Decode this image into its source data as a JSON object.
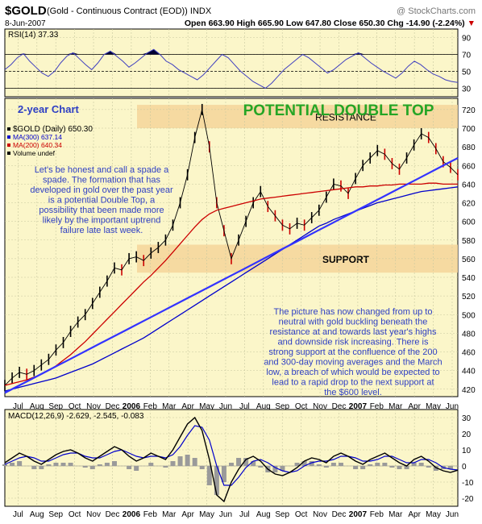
{
  "header": {
    "symbol": "$GOLD",
    "description": "(Gold - Continuous Contract (EOD)) INDX",
    "source": "@ StockCharts.com",
    "date": "8-Jun-2007",
    "quote": "Open 663.90  High 665.90  Low 647.80  Close 650.30  Chg -14.90 (-2.24%)",
    "quote_arrow": "▼"
  },
  "chart_data": [
    {
      "type": "line",
      "panel": "rsi",
      "legend": "RSI(14) 37.33",
      "ylim": [
        20,
        100
      ],
      "y_ticks": [
        30,
        50,
        70,
        90
      ],
      "reference_lines": [
        30,
        50,
        70
      ],
      "grid": true,
      "series": [
        {
          "name": "RSI(14)",
          "values": [
            52,
            58,
            66,
            71,
            62,
            55,
            48,
            44,
            50,
            60,
            68,
            72,
            65,
            58,
            52,
            60,
            70,
            74,
            68,
            62,
            55,
            60,
            66,
            72,
            76,
            70,
            62,
            58,
            52,
            48,
            44,
            40,
            46,
            54,
            62,
            70,
            66,
            58,
            50,
            44,
            38,
            34,
            30,
            36,
            44,
            52,
            58,
            64,
            70,
            66,
            60,
            54,
            48,
            52,
            58,
            64,
            68,
            72,
            66,
            60,
            55,
            50,
            46,
            42,
            48,
            56,
            62,
            58,
            52,
            47,
            44,
            40,
            38,
            37
          ]
        }
      ]
    },
    {
      "type": "line",
      "panel": "price",
      "title": "2-year Chart",
      "headline": "POTENTIAL DOUBLE TOP",
      "legend": [
        "$GOLD (Daily) 650.30",
        "MA(300) 637.14",
        "MA(200) 640.34",
        "Volume undef"
      ],
      "x_labels": [
        "Jul",
        "Aug",
        "Sep",
        "Oct",
        "Nov",
        "Dec",
        "2006",
        "Feb",
        "Mar",
        "Apr",
        "May",
        "Jun",
        "Jul",
        "Aug",
        "Sep",
        "Oct",
        "Nov",
        "Dec",
        "2007",
        "Feb",
        "Mar",
        "Apr",
        "May",
        "Jun"
      ],
      "ylim": [
        412,
        732
      ],
      "y_ticks": [
        420,
        440,
        460,
        480,
        500,
        520,
        540,
        560,
        580,
        600,
        620,
        640,
        660,
        680,
        700,
        720
      ],
      "grid": true,
      "series": [
        {
          "name": "$GOLD",
          "color": "#000000",
          "values": [
            424,
            432,
            438,
            436,
            440,
            446,
            452,
            462,
            470,
            482,
            492,
            500,
            512,
            524,
            536,
            550,
            548,
            560,
            562,
            558,
            566,
            572,
            580,
            596,
            620,
            650,
            690,
            720,
            680,
            620,
            590,
            560,
            580,
            600,
            620,
            632,
            616,
            606,
            596,
            592,
            598,
            596,
            604,
            612,
            626,
            640,
            638,
            630,
            646,
            660,
            668,
            676,
            672,
            662,
            656,
            668,
            682,
            694,
            690,
            678,
            664,
            658,
            650
          ]
        },
        {
          "name": "MA(200)",
          "color": "#cc0000",
          "values": [
            424,
            426,
            428,
            430,
            433,
            436,
            440,
            445,
            451,
            457,
            464,
            471,
            479,
            487,
            495,
            503,
            511,
            519,
            527,
            535,
            542,
            550,
            558,
            567,
            576,
            585,
            594,
            602,
            608,
            612,
            614,
            616,
            618,
            620,
            622,
            624,
            625,
            626,
            627,
            628,
            629,
            630,
            631,
            632,
            633,
            634,
            635,
            636,
            637,
            637,
            638,
            638,
            639,
            639,
            640,
            640,
            640,
            640,
            641,
            641,
            640,
            640,
            640
          ]
        },
        {
          "name": "MA(300)",
          "color": "#0000cc",
          "values": [
            418,
            420,
            422,
            424,
            426,
            428,
            430,
            432,
            435,
            438,
            441,
            444,
            447,
            451,
            455,
            459,
            463,
            467,
            471,
            475,
            480,
            485,
            490,
            495,
            500,
            505,
            510,
            515,
            520,
            525,
            530,
            535,
            540,
            545,
            550,
            555,
            560,
            565,
            570,
            575,
            580,
            585,
            590,
            595,
            598,
            602,
            605,
            608,
            611,
            614,
            617,
            620,
            622,
            624,
            626,
            628,
            630,
            632,
            633,
            634,
            635,
            636,
            637
          ]
        },
        {
          "name": "uptrend",
          "color": "#3333ff",
          "values": [
            416,
            422,
            428,
            434,
            440,
            446,
            452,
            458,
            464,
            470,
            476,
            482,
            488,
            494,
            500,
            506,
            512,
            518,
            524,
            530,
            536,
            542,
            548,
            554,
            560,
            566,
            572,
            578,
            584,
            590,
            596,
            602,
            608,
            614,
            620,
            626,
            632,
            638,
            644,
            650,
            656,
            662,
            668
          ]
        }
      ],
      "zones": [
        {
          "label": "RESISTANCE",
          "from": 700,
          "to": 725
        },
        {
          "label": "SUPPORT",
          "from": 545,
          "to": 575
        }
      ],
      "annotations": [
        "Let's be honest and call a spade a spade. The formation that has developed in gold over the past year is a potential Double Top, a possibility that been made more likely by the important uptrend failure late last week.",
        "The picture has now changed from up to neutral with gold buckling beneath the resistance at and towards last year's highs and downside risk increasing. There is strong support at the confluence of the 200 and 300-day moving averages and the March low, a breach of which would be expected to lead to a rapid drop to the next support at the $600 level."
      ]
    },
    {
      "type": "line",
      "panel": "macd",
      "legend": "MACD(12,26,9) -2.629, -2.545, -0.083",
      "x_labels": [
        "Jul",
        "Aug",
        "Sep",
        "Oct",
        "Nov",
        "Dec",
        "2006",
        "Feb",
        "Mar",
        "Apr",
        "May",
        "Jun",
        "Jul",
        "Aug",
        "Sep",
        "Oct",
        "Nov",
        "Dec",
        "2007",
        "Feb",
        "Mar",
        "Apr",
        "May",
        "Jun"
      ],
      "ylim": [
        -25,
        35
      ],
      "y_ticks": [
        -20,
        -10,
        0,
        10,
        20,
        30
      ],
      "grid": true,
      "series": [
        {
          "name": "MACD",
          "color": "#000000",
          "values": [
            2,
            5,
            8,
            6,
            3,
            1,
            4,
            7,
            9,
            10,
            8,
            5,
            3,
            6,
            9,
            12,
            10,
            6,
            3,
            5,
            8,
            6,
            4,
            10,
            18,
            26,
            30,
            22,
            4,
            -18,
            -22,
            -10,
            -2,
            4,
            6,
            3,
            -2,
            -5,
            -6,
            -4,
            -1,
            3,
            5,
            4,
            2,
            6,
            8,
            6,
            3,
            1,
            4,
            6,
            8,
            5,
            2,
            0,
            4,
            6,
            3,
            -1,
            -3,
            -4,
            -2.6
          ]
        },
        {
          "name": "signal",
          "color": "#0000cc",
          "values": [
            1,
            3,
            5,
            6,
            5,
            3,
            3,
            5,
            7,
            8,
            8,
            6,
            5,
            5,
            7,
            9,
            10,
            8,
            6,
            5,
            6,
            6,
            5,
            7,
            12,
            19,
            25,
            24,
            16,
            0,
            -12,
            -12,
            -7,
            -1,
            3,
            4,
            2,
            -1,
            -3,
            -4,
            -3,
            0,
            2,
            3,
            3,
            4,
            6,
            6,
            5,
            3,
            3,
            4,
            6,
            6,
            4,
            2,
            2,
            4,
            4,
            2,
            -1,
            -2,
            -2.5
          ]
        },
        {
          "name": "histogram",
          "color": "#888888",
          "values": [
            1,
            2,
            3,
            0,
            -2,
            -2,
            1,
            2,
            2,
            2,
            0,
            -1,
            -2,
            1,
            2,
            3,
            0,
            -2,
            -3,
            0,
            2,
            0,
            -1,
            3,
            6,
            7,
            5,
            -2,
            -12,
            -18,
            -10,
            2,
            5,
            5,
            3,
            -1,
            -4,
            -4,
            -3,
            0,
            2,
            3,
            3,
            1,
            -1,
            2,
            2,
            0,
            -2,
            -2,
            1,
            2,
            2,
            -1,
            -2,
            -2,
            2,
            2,
            -1,
            -3,
            -2,
            -2,
            -0.1
          ]
        }
      ]
    }
  ]
}
